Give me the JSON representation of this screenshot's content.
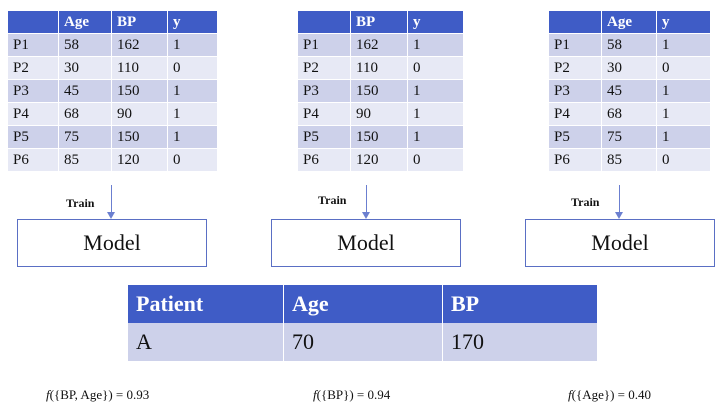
{
  "tables": [
    {
      "headers": [
        "",
        "Age",
        "BP",
        "y"
      ],
      "rows": [
        [
          "P1",
          "58",
          "162",
          "1"
        ],
        [
          "P2",
          "30",
          "110",
          "0"
        ],
        [
          "P3",
          "45",
          "150",
          "1"
        ],
        [
          "P4",
          "68",
          "90",
          "1"
        ],
        [
          "P5",
          "75",
          "150",
          "1"
        ],
        [
          "P6",
          "85",
          "120",
          "0"
        ]
      ]
    },
    {
      "headers": [
        "",
        "BP",
        "y"
      ],
      "rows": [
        [
          "P1",
          "162",
          "1"
        ],
        [
          "P2",
          "110",
          "0"
        ],
        [
          "P3",
          "150",
          "1"
        ],
        [
          "P4",
          "90",
          "1"
        ],
        [
          "P5",
          "150",
          "1"
        ],
        [
          "P6",
          "120",
          "0"
        ]
      ]
    },
    {
      "headers": [
        "",
        "Age",
        "y"
      ],
      "rows": [
        [
          "P1",
          "58",
          "1"
        ],
        [
          "P2",
          "30",
          "0"
        ],
        [
          "P3",
          "45",
          "1"
        ],
        [
          "P4",
          "68",
          "1"
        ],
        [
          "P5",
          "75",
          "1"
        ],
        [
          "P6",
          "85",
          "0"
        ]
      ]
    }
  ],
  "train_label": "Train",
  "model_label": "Model",
  "patient_table": {
    "headers": [
      "Patient",
      "Age",
      "BP"
    ],
    "row": [
      "A",
      "70",
      "170"
    ]
  },
  "formulas": [
    {
      "fn": "f",
      "text": "({BP, Age}) = 0.93"
    },
    {
      "fn": "f",
      "text": "({BP}) = 0.94"
    },
    {
      "fn": "f",
      "text": "({Age}) = 0.40"
    }
  ]
}
